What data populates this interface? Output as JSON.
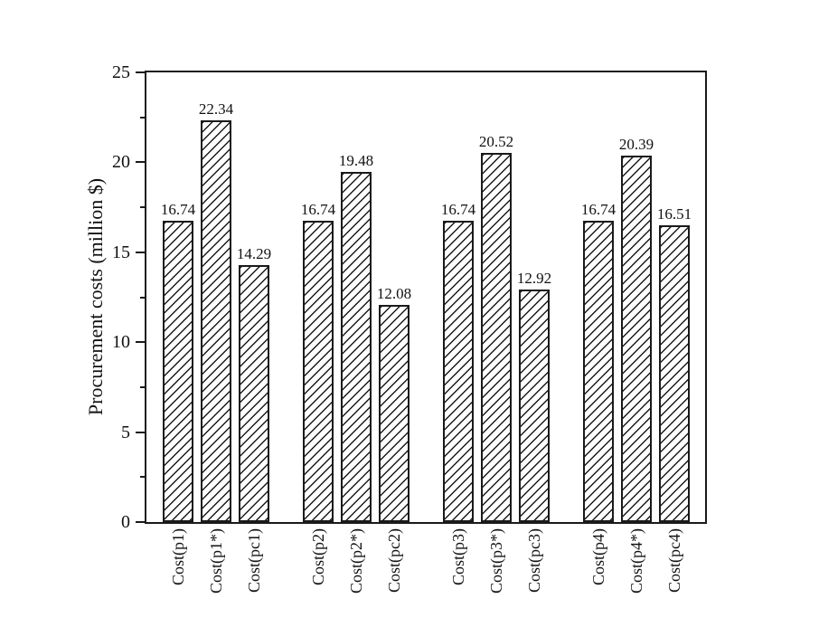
{
  "chart_data": {
    "type": "bar",
    "title": "",
    "ylabel": "Procurement costs (million $)",
    "xlabel": "",
    "ylim": [
      0,
      25
    ],
    "yticks": [
      0,
      5,
      10,
      15,
      20,
      25
    ],
    "minor_yticks": [
      2.5,
      7.5,
      12.5,
      17.5,
      22.5
    ],
    "grid": false,
    "legend": false,
    "group_size": 3,
    "bar_style": {
      "fill": "#ffffff",
      "hatch": "/",
      "edge_color": "#1a1a1a"
    },
    "categories": [
      "Cost(p1)",
      "Cost(p1*)",
      "Cost(pc1)",
      "Cost(p2)",
      "Cost(p2*)",
      "Cost(pc2)",
      "Cost(p3)",
      "Cost(p3*)",
      "Cost(pc3)",
      "Cost(p4)",
      "Cost(p4*)",
      "Cost(pc4)"
    ],
    "values": [
      16.74,
      22.34,
      14.29,
      16.74,
      19.48,
      12.08,
      16.74,
      20.52,
      12.92,
      16.74,
      20.39,
      16.51
    ],
    "value_labels": [
      "16.74",
      "22.34",
      "14.29",
      "16.74",
      "19.48",
      "12.08",
      "16.74",
      "20.52",
      "12.92",
      "16.74",
      "20.39",
      "16.51"
    ]
  }
}
